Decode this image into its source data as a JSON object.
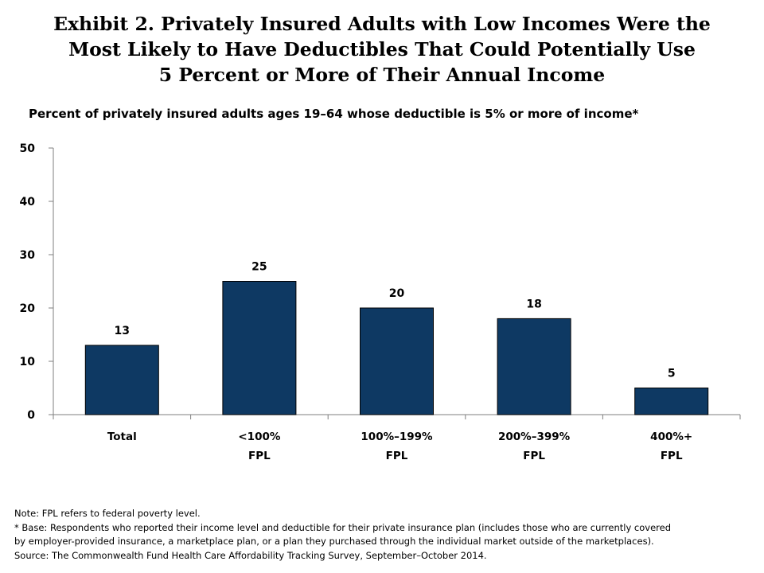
{
  "title_lines": [
    "Exhibit 2. Privately Insured Adults with Low Incomes Were the",
    "Most Likely to Have Deductibles That Could Potentially Use",
    "5 Percent or More of Their Annual Income"
  ],
  "notes": [
    "Note: FPL refers to federal poverty level.",
    "* Base: Respondents who reported their income level and deductible for their private insurance plan (includes those who are currently covered",
    "by employer-provided insurance, a marketplace plan, or a plan they purchased through the individual market outside of the marketplaces).",
    "Source: The Commonwealth Fund Health Care Affordability Tracking Survey, September–October 2014."
  ],
  "chart_data": {
    "type": "bar",
    "title": "Percent of privately insured adults ages 19–64 whose deductible is 5% or more of income*",
    "categories": [
      [
        "Total"
      ],
      [
        "<100%",
        "FPL"
      ],
      [
        "100%–199%",
        "FPL"
      ],
      [
        "200%–399%",
        "FPL"
      ],
      [
        "400%+",
        "FPL"
      ]
    ],
    "values": [
      13,
      25,
      20,
      18,
      5
    ],
    "data_labels": [
      "13",
      "25",
      "20",
      "18",
      "5"
    ],
    "ylim": [
      0,
      50
    ],
    "yticks": [
      0,
      10,
      20,
      30,
      40,
      50
    ],
    "bar_color": "#0e3963",
    "grid": false,
    "legend": "none"
  }
}
